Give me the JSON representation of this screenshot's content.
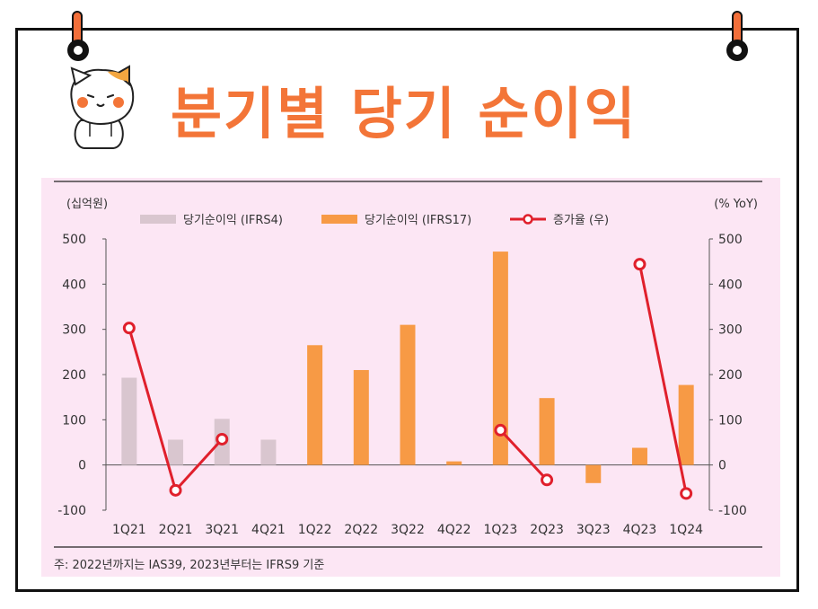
{
  "header": {
    "title": "분기별 당기 순이익"
  },
  "footnote": "주: 2022년까지는 IAS39, 2023년부터는 IFRS9 기준",
  "colors": {
    "ifrs4": "#d9c6cf",
    "ifrs17": "#f79a45",
    "growth": "#e0202c",
    "title": "#f37538"
  },
  "icons": [
    "mascot-cat-icon",
    "binder-ring-icon"
  ],
  "chart_data": {
    "type": "bar",
    "categories": [
      "1Q21",
      "2Q21",
      "3Q21",
      "4Q21",
      "1Q22",
      "2Q22",
      "3Q22",
      "4Q22",
      "1Q23",
      "2Q23",
      "3Q23",
      "4Q23",
      "1Q24"
    ],
    "left_axis_label": "(십억원)",
    "right_axis_label": "(% YoY)",
    "ylim": [
      -100,
      500
    ],
    "yticks": [
      "500",
      "400",
      "300",
      "200",
      "100",
      "0",
      "-100"
    ],
    "series": [
      {
        "name": "당기순이익 (IFRS4)",
        "type": "bar",
        "values": [
          193,
          56,
          102,
          56,
          null,
          null,
          null,
          null,
          null,
          null,
          null,
          null,
          null
        ]
      },
      {
        "name": "당기순이익 (IFRS17)",
        "type": "bar",
        "values": [
          null,
          null,
          null,
          null,
          265,
          210,
          310,
          8,
          472,
          148,
          -40,
          38,
          177
        ]
      },
      {
        "name": "증가율 (우)",
        "type": "line",
        "axis": "right",
        "segments": [
          [
            [
              0,
              303
            ],
            [
              1,
              -56
            ],
            [
              2,
              57
            ]
          ],
          [
            [
              8,
              77
            ],
            [
              9,
              -33
            ]
          ],
          [
            [
              11,
              444
            ],
            [
              12,
              -63
            ]
          ]
        ]
      }
    ],
    "legend_position": "top",
    "grid": false
  }
}
